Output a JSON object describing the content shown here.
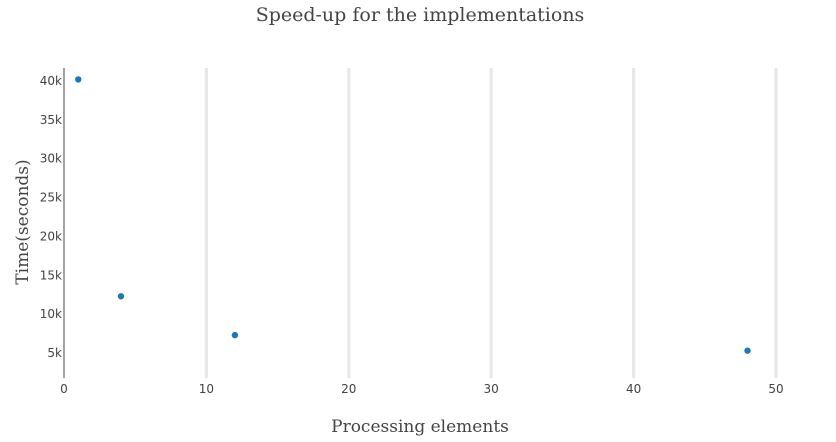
{
  "chart_data": {
    "type": "scatter",
    "title": "Speed-up for the implementations",
    "xlabel": "Processing elements",
    "ylabel": "Time(seconds)",
    "xlim": [
      0,
      50
    ],
    "ylim": [
      2000,
      41000
    ],
    "x_ticks": [
      0,
      10,
      20,
      30,
      40,
      50
    ],
    "x_tick_labels": [
      "0",
      "10",
      "20",
      "30",
      "40",
      "50"
    ],
    "y_ticks": [
      5000,
      10000,
      15000,
      20000,
      25000,
      30000,
      35000,
      40000
    ],
    "y_tick_labels": [
      "5k",
      "10k",
      "15k",
      "20k",
      "25k",
      "30k",
      "35k",
      "40k"
    ],
    "grid": "vertical",
    "marker_color": "#1f77b4",
    "series": [
      {
        "x": [
          1,
          4,
          12,
          48
        ],
        "y": [
          40200,
          12300,
          7300,
          5300
        ]
      }
    ]
  }
}
